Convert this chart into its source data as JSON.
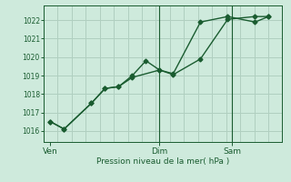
{
  "background_color": "#ceeadc",
  "grid_color": "#b0cfc0",
  "line_color": "#1a5c30",
  "title": "Pression niveau de la mer( hPa )",
  "x_ticks_labels": [
    "Ven",
    "Dim",
    "Sam"
  ],
  "x_ticks_pos": [
    0.0,
    8.0,
    13.33
  ],
  "ylim": [
    1015.4,
    1022.8
  ],
  "yticks": [
    1016,
    1017,
    1018,
    1019,
    1020,
    1021,
    1022
  ],
  "series1_x": [
    0.0,
    1.0,
    3.0,
    4.0,
    5.0,
    6.0,
    8.0,
    9.0,
    11.0,
    13.0,
    15.0,
    16.0
  ],
  "series1_y": [
    1016.5,
    1016.1,
    1017.5,
    1018.3,
    1018.4,
    1018.9,
    1019.3,
    1019.1,
    1021.9,
    1022.2,
    1021.9,
    1022.2
  ],
  "series2_x": [
    0.0,
    1.0,
    3.0,
    4.0,
    5.0,
    6.0,
    7.0,
    8.0,
    9.0,
    11.0,
    13.0,
    15.0,
    16.0
  ],
  "series2_y": [
    1016.5,
    1016.1,
    1017.5,
    1018.3,
    1018.4,
    1019.0,
    1019.8,
    1019.3,
    1019.05,
    1019.9,
    1022.05,
    1022.2,
    1022.2
  ],
  "vline_x_dim": 8.0,
  "vline_x_sam": 13.33,
  "xlim": [
    -0.5,
    17.0
  ],
  "n_vgrid": 18,
  "figsize": [
    3.2,
    2.0
  ],
  "dpi": 100
}
